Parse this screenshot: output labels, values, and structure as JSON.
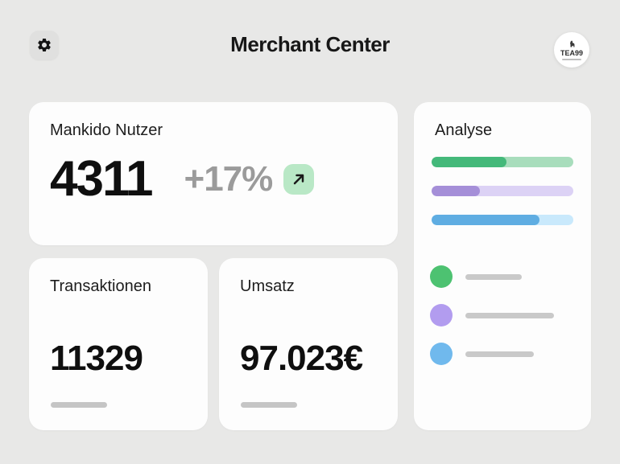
{
  "app": {
    "title": "Merchant Center"
  },
  "header": {
    "settings_button": {
      "icon": "gear"
    },
    "logo": {
      "text": "TEA99",
      "icon": "llama"
    }
  },
  "cards": {
    "users": {
      "label": "Mankido Nutzer",
      "value": "4311",
      "delta": "+17%",
      "trend_icon": "arrow-up-right",
      "badge_color": "#B9E8C6"
    },
    "transactions": {
      "label": "Transaktionen",
      "value": "11329"
    },
    "revenue": {
      "label": "Umsatz",
      "value": "97.023€"
    },
    "analysis": {
      "label": "Analyse"
    }
  },
  "chart_data": {
    "type": "bar",
    "title": "Analyse",
    "orientation": "horizontal",
    "value_range": [
      0,
      100
    ],
    "grid": false,
    "legend_position": "below",
    "series": [
      {
        "name": "metric-green",
        "percent": 53,
        "fill_color": "#44B97A",
        "track_color": "#A8DDBC"
      },
      {
        "name": "metric-purple",
        "percent": 34,
        "fill_color": "#A58FD8",
        "track_color": "#DCD2F5"
      },
      {
        "name": "metric-blue",
        "percent": 76,
        "fill_color": "#5FADE2",
        "track_color": "#C9E9FC"
      }
    ],
    "legend": [
      {
        "name": "legend-green",
        "dot_color": "#4DC271",
        "label_bar_width": 70
      },
      {
        "name": "legend-purple",
        "dot_color": "#B29CEF",
        "label_bar_width": 110
      },
      {
        "name": "legend-blue",
        "dot_color": "#70B9ED",
        "label_bar_width": 85
      }
    ]
  },
  "colors": {
    "page_background": "#E8E8E7",
    "card_background": "#FDFDFD",
    "text_primary": "#101010",
    "text_muted": "#9B9B9B",
    "placeholder_gray": "#C5C5C5",
    "badge_green": "#B9E8C6"
  }
}
